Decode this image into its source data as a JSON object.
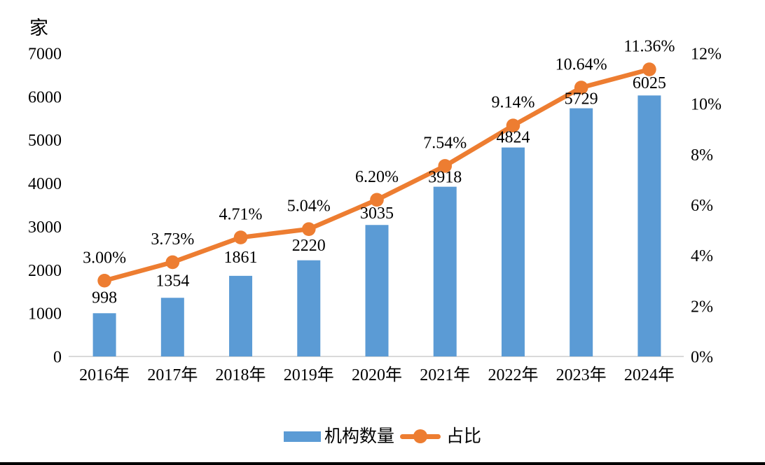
{
  "unit_label": "家",
  "colors": {
    "bar": "#5B9BD5",
    "line": "#ED7D31",
    "axis_line": "#D9D9D9",
    "text": "#000000",
    "bottom_border": "#000000"
  },
  "legend": [
    {
      "label": "机构数量",
      "swatch": "bar"
    },
    {
      "label": "占比",
      "swatch": "line-with-dot"
    }
  ],
  "chart_data": {
    "type": "bar",
    "subtype": "combo bar + line, dual y-axes",
    "categories": [
      "2016年",
      "2017年",
      "2018年",
      "2019年",
      "2020年",
      "2021年",
      "2022年",
      "2023年",
      "2024年"
    ],
    "series": [
      {
        "name": "机构数量",
        "type": "bar",
        "axis": "left",
        "values": [
          998,
          1354,
          1861,
          2220,
          3035,
          3918,
          4824,
          5729,
          6025
        ],
        "data_labels": [
          "998",
          "1354",
          "1861",
          "2220",
          "3035",
          "3918",
          "4824",
          "5729",
          "6025"
        ]
      },
      {
        "name": "占比",
        "type": "line",
        "axis": "right",
        "values": [
          3.0,
          3.73,
          4.71,
          5.04,
          6.2,
          7.54,
          9.14,
          10.64,
          11.36
        ],
        "data_labels": [
          "3.00%",
          "3.73%",
          "4.71%",
          "5.04%",
          "6.20%",
          "7.54%",
          "9.14%",
          "10.64%",
          "11.36%"
        ]
      }
    ],
    "left_axis": {
      "title": "家",
      "min": 0,
      "max": 7000,
      "tick_step": 1000,
      "ticks": [
        "0",
        "1000",
        "2000",
        "3000",
        "4000",
        "5000",
        "6000",
        "7000"
      ]
    },
    "right_axis": {
      "min": 0,
      "max": 12,
      "tick_step": 2,
      "ticks": [
        "0%",
        "2%",
        "4%",
        "6%",
        "8%",
        "10%",
        "12%"
      ]
    },
    "grid": "off",
    "legend_position": "bottom"
  }
}
